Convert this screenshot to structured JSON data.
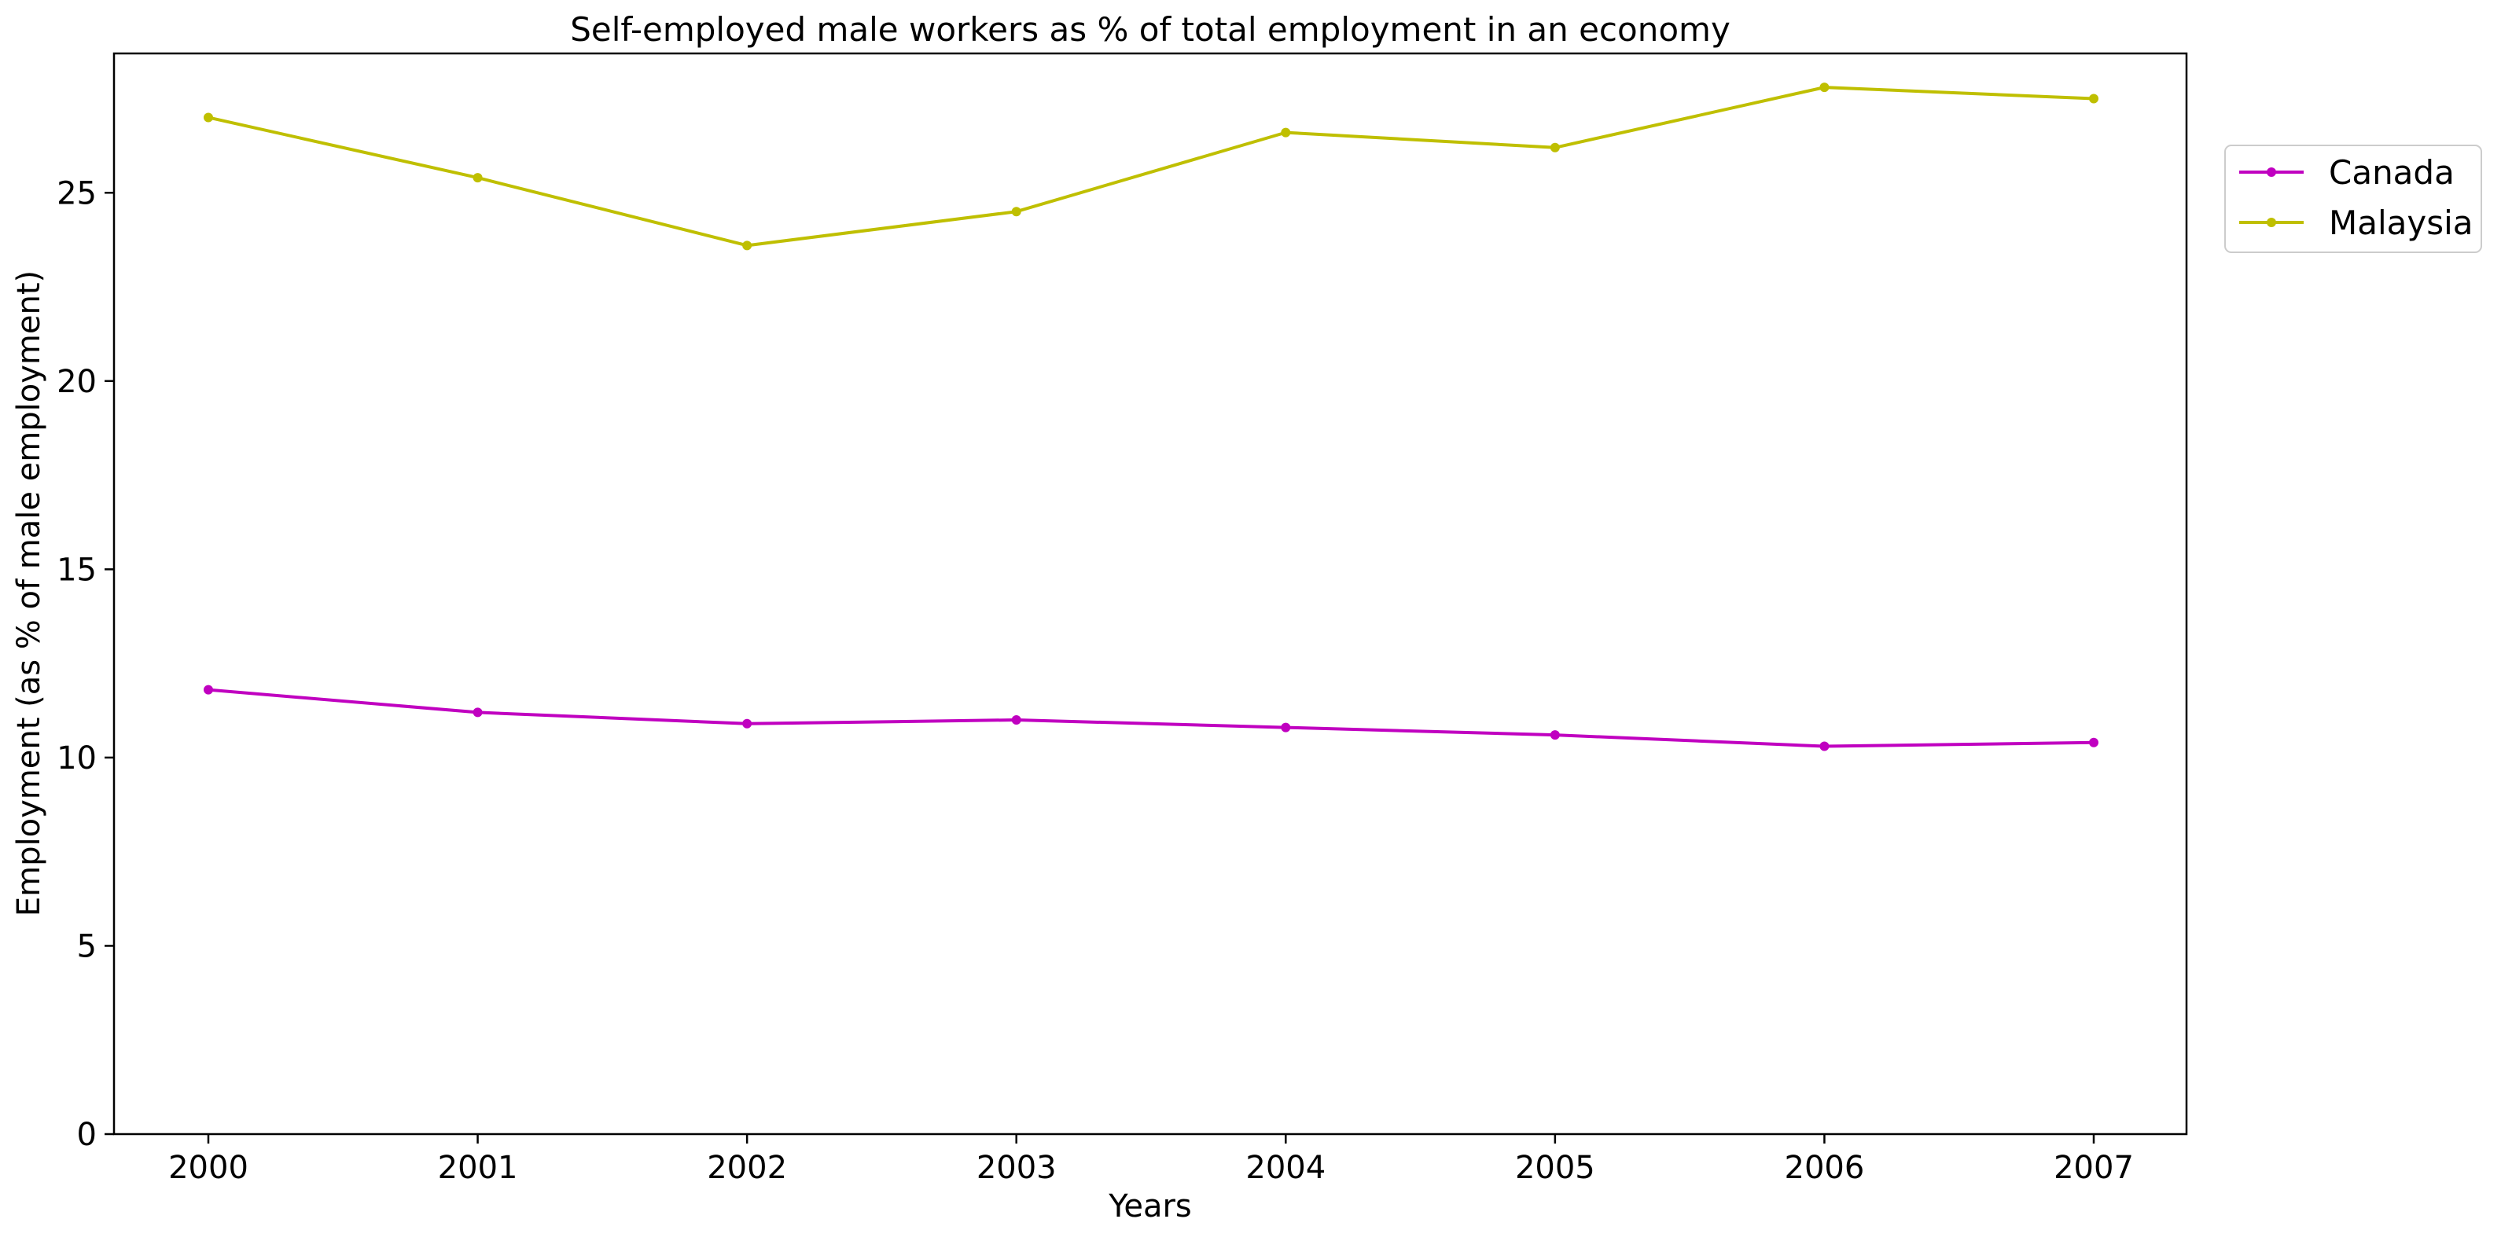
{
  "chart_data": {
    "type": "line",
    "title": "Self-employed male workers as % of total employment in an economy",
    "xlabel": "Years",
    "ylabel": "Employment (as % of male employment)",
    "categories": [
      "2000",
      "2001",
      "2002",
      "2003",
      "2004",
      "2005",
      "2006",
      "2007"
    ],
    "series": [
      {
        "name": "Canada",
        "color": "#c000c0",
        "values": [
          11.8,
          11.2,
          10.9,
          11.0,
          10.8,
          10.6,
          10.3,
          10.4
        ]
      },
      {
        "name": "Malaysia",
        "color": "#bfbf00",
        "values": [
          27.0,
          25.4,
          23.6,
          24.5,
          26.6,
          26.2,
          27.8,
          27.5
        ]
      }
    ],
    "ylim": [
      0,
      28.7
    ],
    "yticks": [
      0,
      5,
      10,
      15,
      20,
      25
    ],
    "grid": false,
    "legend_position": "top-right, outside plot area",
    "marker": "dot"
  }
}
